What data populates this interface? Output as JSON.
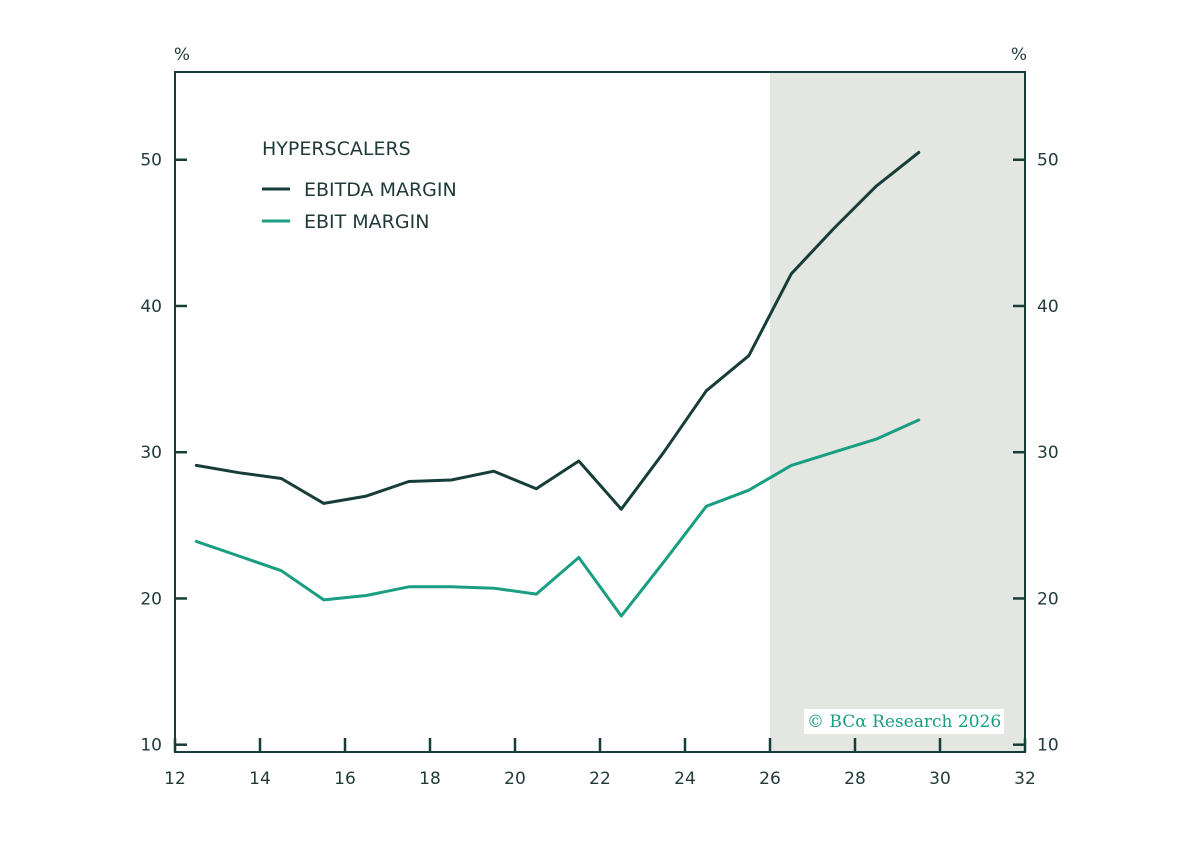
{
  "chart_data": {
    "type": "line",
    "title": "",
    "legend_title": "HYPERSCALERS",
    "legend_placement": "top-left",
    "y_unit_left": "%",
    "y_unit_right": "%",
    "xlim": [
      12,
      32
    ],
    "ylim": [
      9.5,
      56
    ],
    "x_ticks": [
      12,
      14,
      16,
      18,
      20,
      22,
      24,
      26,
      28,
      30,
      32
    ],
    "y_ticks": [
      10,
      20,
      30,
      40,
      50
    ],
    "grid": false,
    "shaded_region": {
      "x_start": 26,
      "x_end": 32,
      "color": "#e4e6e1"
    },
    "credit": "© BCα Research 2026",
    "series": [
      {
        "name": "EBITDA MARGIN",
        "color": "#173d38",
        "x": [
          12.5,
          13.5,
          14.5,
          15.5,
          16.5,
          17.5,
          18.5,
          19.5,
          20.5,
          21.5,
          22.5,
          23.5,
          24.5,
          25.5,
          26.5,
          27.5,
          28.5,
          29.5
        ],
        "values": [
          29.1,
          28.6,
          28.2,
          26.5,
          27.0,
          28.0,
          28.1,
          28.7,
          27.5,
          29.4,
          26.1,
          30.0,
          34.2,
          36.6,
          42.2,
          45.3,
          48.2,
          50.5
        ]
      },
      {
        "name": "EBIT MARGIN",
        "color": "#1a9e82",
        "x": [
          12.5,
          13.5,
          14.5,
          15.5,
          16.5,
          17.5,
          18.5,
          19.5,
          20.5,
          21.5,
          22.5,
          23.5,
          24.5,
          25.5,
          26.5,
          27.5,
          28.5,
          29.5
        ],
        "values": [
          23.9,
          22.9,
          21.9,
          19.9,
          20.2,
          20.8,
          20.8,
          20.7,
          20.3,
          22.8,
          18.8,
          22.5,
          26.3,
          27.4,
          29.1,
          30.0,
          30.9,
          32.2
        ]
      }
    ]
  }
}
